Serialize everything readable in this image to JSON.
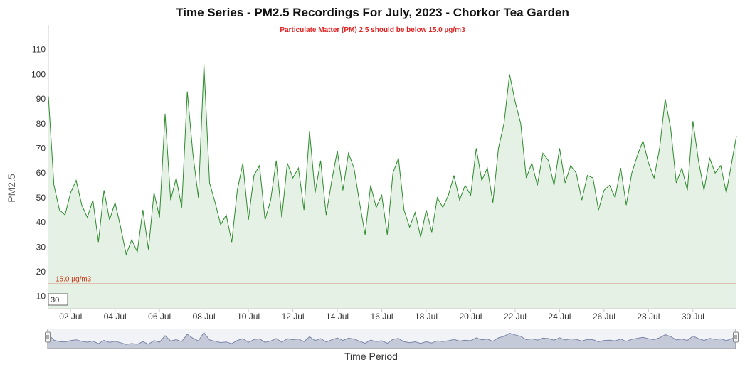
{
  "chart_data": {
    "type": "area",
    "title": "Time Series - PM2.5 Recordings For July, 2023 - Chorkor Tea Garden",
    "subtitle": "Particulate Matter (PM) 2.5 should be below 15.0 µg/m3",
    "ylabel": "PM2.5",
    "xlabel": "Time Period",
    "x_start": "2023-07-01",
    "x_end": "2023-07-31 23:00",
    "xticks": [
      "02 Jul",
      "04 Jul",
      "06 Jul",
      "08 Jul",
      "10 Jul",
      "12 Jul",
      "14 Jul",
      "16 Jul",
      "18 Jul",
      "20 Jul",
      "22 Jul",
      "24 Jul",
      "26 Jul",
      "28 Jul",
      "30 Jul"
    ],
    "ylim": [
      5,
      120
    ],
    "yticks": [
      10,
      20,
      30,
      40,
      50,
      60,
      70,
      80,
      90,
      100,
      110
    ],
    "grid": false,
    "legend": "none",
    "rolling_period": "30",
    "threshold": {
      "value": 15,
      "label": "15.0 µg/m3",
      "color": "#cc3311"
    },
    "colors": {
      "line": "#2d8a2d",
      "fill": "#e4f1e4",
      "navigator_line": "#7b85a8",
      "navigator_fill": "#c5cad9"
    },
    "series": [
      {
        "x": [
          "2023-07-01 00:00",
          "2023-07-01 06:00",
          "2023-07-01 12:00",
          "2023-07-01 18:00",
          "2023-07-02 00:00",
          "2023-07-02 06:00",
          "2023-07-02 12:00",
          "2023-07-02 18:00",
          "2023-07-03 00:00",
          "2023-07-03 06:00",
          "2023-07-03 12:00",
          "2023-07-03 18:00",
          "2023-07-04 00:00",
          "2023-07-04 06:00",
          "2023-07-04 12:00",
          "2023-07-04 18:00",
          "2023-07-05 00:00",
          "2023-07-05 06:00",
          "2023-07-05 12:00",
          "2023-07-05 18:00",
          "2023-07-06 00:00",
          "2023-07-06 06:00",
          "2023-07-06 12:00",
          "2023-07-06 18:00",
          "2023-07-07 00:00",
          "2023-07-07 06:00",
          "2023-07-07 12:00",
          "2023-07-07 18:00",
          "2023-07-08 00:00",
          "2023-07-08 06:00",
          "2023-07-08 12:00",
          "2023-07-08 18:00",
          "2023-07-09 00:00",
          "2023-07-09 06:00",
          "2023-07-09 12:00",
          "2023-07-09 18:00",
          "2023-07-10 00:00",
          "2023-07-10 06:00",
          "2023-07-10 12:00",
          "2023-07-10 18:00",
          "2023-07-11 00:00",
          "2023-07-11 06:00",
          "2023-07-11 12:00",
          "2023-07-11 18:00",
          "2023-07-12 00:00",
          "2023-07-12 06:00",
          "2023-07-12 12:00",
          "2023-07-12 18:00",
          "2023-07-13 00:00",
          "2023-07-13 06:00",
          "2023-07-13 12:00",
          "2023-07-13 18:00",
          "2023-07-14 00:00",
          "2023-07-14 06:00",
          "2023-07-14 12:00",
          "2023-07-14 18:00",
          "2023-07-15 00:00",
          "2023-07-15 06:00",
          "2023-07-15 12:00",
          "2023-07-15 18:00",
          "2023-07-16 00:00",
          "2023-07-16 06:00",
          "2023-07-16 12:00",
          "2023-07-16 18:00",
          "2023-07-17 00:00",
          "2023-07-17 06:00",
          "2023-07-17 12:00",
          "2023-07-17 18:00",
          "2023-07-18 00:00",
          "2023-07-18 06:00",
          "2023-07-18 12:00",
          "2023-07-18 18:00",
          "2023-07-19 00:00",
          "2023-07-19 06:00",
          "2023-07-19 12:00",
          "2023-07-19 18:00",
          "2023-07-20 00:00",
          "2023-07-20 06:00",
          "2023-07-20 12:00",
          "2023-07-20 18:00",
          "2023-07-21 00:00",
          "2023-07-21 06:00",
          "2023-07-21 12:00",
          "2023-07-21 18:00",
          "2023-07-22 00:00",
          "2023-07-22 06:00",
          "2023-07-22 12:00",
          "2023-07-22 18:00",
          "2023-07-23 00:00",
          "2023-07-23 06:00",
          "2023-07-23 12:00",
          "2023-07-23 18:00",
          "2023-07-24 00:00",
          "2023-07-24 06:00",
          "2023-07-24 12:00",
          "2023-07-24 18:00",
          "2023-07-25 00:00",
          "2023-07-25 06:00",
          "2023-07-25 12:00",
          "2023-07-25 18:00",
          "2023-07-26 00:00",
          "2023-07-26 06:00",
          "2023-07-26 12:00",
          "2023-07-26 18:00",
          "2023-07-27 00:00",
          "2023-07-27 06:00",
          "2023-07-27 12:00",
          "2023-07-27 18:00",
          "2023-07-28 00:00",
          "2023-07-28 06:00",
          "2023-07-28 12:00",
          "2023-07-28 18:00",
          "2023-07-29 00:00",
          "2023-07-29 06:00",
          "2023-07-29 12:00",
          "2023-07-29 18:00",
          "2023-07-30 00:00",
          "2023-07-30 06:00",
          "2023-07-30 12:00",
          "2023-07-30 18:00",
          "2023-07-31 00:00",
          "2023-07-31 06:00",
          "2023-07-31 12:00",
          "2023-07-31 23:00"
        ],
        "y": [
          91,
          55,
          45,
          43,
          52,
          57,
          47,
          42,
          49,
          32,
          53,
          41,
          48,
          38,
          27,
          33,
          28,
          45,
          29,
          52,
          42,
          84,
          49,
          58,
          46,
          93,
          68,
          50,
          104,
          56,
          48,
          39,
          43,
          32,
          53,
          64,
          41,
          59,
          63,
          41,
          49,
          65,
          42,
          64,
          58,
          62,
          45,
          77,
          52,
          65,
          43,
          57,
          69,
          53,
          68,
          62,
          48,
          35,
          55,
          46,
          51,
          35,
          60,
          66,
          45,
          38,
          44,
          34,
          45,
          36,
          50,
          46,
          51,
          59,
          49,
          55,
          51,
          70,
          57,
          62,
          48,
          70,
          80,
          100,
          89,
          80,
          58,
          64,
          55,
          68,
          65,
          55,
          70,
          56,
          63,
          60,
          49,
          59,
          58,
          45,
          53,
          55,
          50,
          62,
          47,
          60,
          67,
          73,
          64,
          58,
          70,
          90,
          78,
          56,
          62,
          53,
          81,
          65,
          53,
          66,
          60,
          63,
          52,
          75
        ]
      }
    ]
  }
}
